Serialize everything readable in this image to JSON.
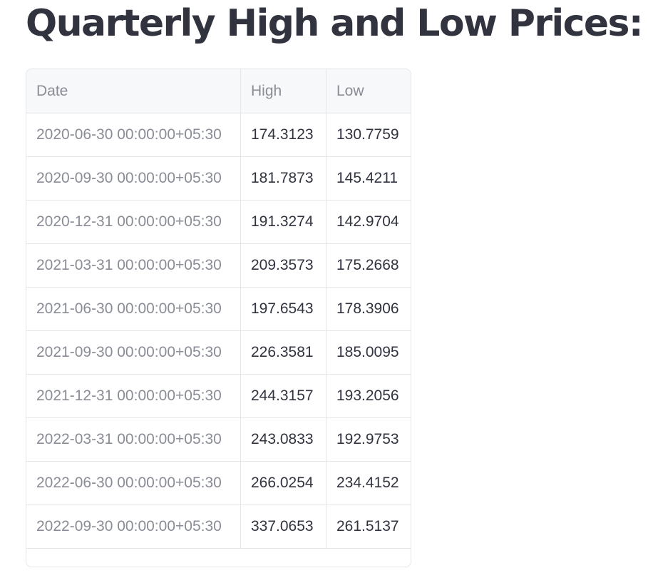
{
  "page": {
    "title": "Quarterly High and Low Prices:"
  },
  "table": {
    "columns": [
      "Date",
      "High",
      "Low"
    ],
    "rows": [
      {
        "date": "2020-06-30 00:00:00+05:30",
        "high": "174.3123",
        "low": "130.7759"
      },
      {
        "date": "2020-09-30 00:00:00+05:30",
        "high": "181.7873",
        "low": "145.4211"
      },
      {
        "date": "2020-12-31 00:00:00+05:30",
        "high": "191.3274",
        "low": "142.9704"
      },
      {
        "date": "2021-03-31 00:00:00+05:30",
        "high": "209.3573",
        "low": "175.2668"
      },
      {
        "date": "2021-06-30 00:00:00+05:30",
        "high": "197.6543",
        "low": "178.3906"
      },
      {
        "date": "2021-09-30 00:00:00+05:30",
        "high": "226.3581",
        "low": "185.0095"
      },
      {
        "date": "2021-12-31 00:00:00+05:30",
        "high": "244.3157",
        "low": "193.2056"
      },
      {
        "date": "2022-03-31 00:00:00+05:30",
        "high": "243.0833",
        "low": "192.9753"
      },
      {
        "date": "2022-06-30 00:00:00+05:30",
        "high": "266.0254",
        "low": "234.4152"
      },
      {
        "date": "2022-09-30 00:00:00+05:30",
        "high": "337.0653",
        "low": "261.5137"
      }
    ]
  }
}
